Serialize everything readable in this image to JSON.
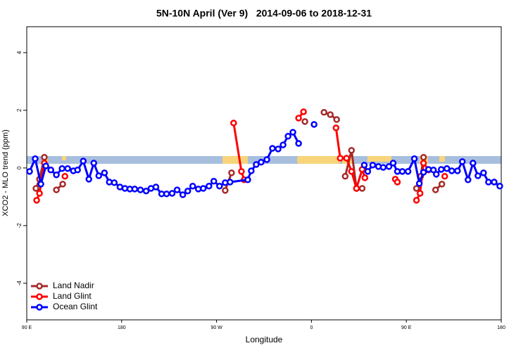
{
  "chart_data": {
    "type": "line",
    "title": "5N-10N April (Ver 9)   2014-09-06 to 2018-12-31",
    "x_label": "Longitude",
    "y_label": "XCO2 - MLO trend (ppm)",
    "xlim": [
      90,
      540
    ],
    "xticks": [
      {
        "value": 90,
        "label": "90 E"
      },
      {
        "value": 180,
        "label": "180"
      },
      {
        "value": 270,
        "label": "90 W"
      },
      {
        "value": 360,
        "label": "0"
      },
      {
        "value": 450,
        "label": "90 E"
      },
      {
        "value": 540,
        "label": "180"
      }
    ],
    "ylim": [
      -5.27,
      4.9
    ],
    "yticks": [
      -4,
      -2,
      0,
      2,
      4
    ],
    "legend": "bottom-left",
    "series": [
      {
        "name": "Land Nadir",
        "color": "#a52a2a",
        "x": [
          98.7,
          102.1,
          106.7,
          null,
          118.1,
          124.1,
          null,
          278.2,
          284.2,
          null,
          353.8,
          null,
          371.9,
          377.9,
          383.9,
          null,
          392.0,
          398.0,
          402.7,
          408.1,
          null,
          459.6,
          463.6,
          466.3,
          null,
          477.7,
          483.7
        ],
        "values": [
          -0.71,
          -0.39,
          0.37,
          null,
          -0.76,
          -0.56,
          null,
          -0.78,
          -0.17,
          null,
          1.61,
          null,
          1.93,
          1.85,
          1.68,
          null,
          -0.29,
          0.61,
          -0.71,
          -0.71,
          null,
          -0.71,
          -0.29,
          0.37,
          null,
          -0.76,
          -0.56
        ]
      },
      {
        "name": "Land Glint",
        "color": "#ff0000",
        "x": [
          99.4,
          102.1,
          106.7,
          112.8,
          null,
          126.2,
          null,
          286.2,
          293.6,
          296.2,
          null,
          347.8,
          352.5,
          null,
          383.3,
          387.3,
          393.3,
          398.0,
          402.7,
          408.1,
          410.7,
          null,
          439.5,
          441.5,
          null,
          459.6,
          463.0,
          466.3,
          471.0,
          null,
          486.4
        ],
        "values": [
          -1.12,
          -0.88,
          0.17,
          -0.07,
          null,
          -0.29,
          null,
          1.56,
          -0.12,
          -0.41,
          null,
          1.73,
          1.95,
          null,
          1.39,
          0.34,
          0.34,
          -0.12,
          -0.71,
          -0.05,
          -0.34,
          null,
          -0.39,
          -0.49,
          null,
          -1.12,
          -0.88,
          0.17,
          -0.07,
          null,
          -0.29
        ]
      },
      {
        "name": "Ocean Glint",
        "color": "#0000ff",
        "x": [
          92.7,
          98.0,
          103.4,
          108.1,
          112.8,
          118.1,
          123.5,
          128.8,
          134.2,
          138.2,
          143.6,
          148.9,
          153.6,
          158.3,
          163.7,
          168.3,
          173.0,
          178.4,
          183.1,
          187.8,
          192.4,
          197.8,
          203.2,
          207.8,
          212.5,
          217.9,
          222.6,
          227.9,
          232.6,
          238.0,
          242.7,
          247.4,
          252.7,
          257.4,
          262.8,
          267.4,
          272.8,
          278.2,
          282.8,
          299.6,
          302.9,
          307.6,
          312.3,
          317.7,
          323.0,
          328.4,
          333.1,
          337.8,
          342.4,
          347.8,
          null,
          362.5,
          null,
          410.1,
          413.4,
          418.1,
          423.5,
          428.1,
          433.5,
          437.5,
          441.5,
          446.2,
          451.6,
          457.6,
          462.3,
          466.3,
          471.0,
          475.7,
          478.4,
          483.1,
          488.4,
          493.1,
          498.5,
          503.1,
          508.5,
          513.2,
          517.9,
          523.2,
          527.9,
          533.3,
          538.6
        ],
        "values": [
          -0.12,
          0.32,
          -0.56,
          0.07,
          -0.07,
          -0.24,
          -0.02,
          -0.02,
          -0.1,
          -0.07,
          0.24,
          -0.39,
          0.17,
          -0.27,
          -0.17,
          -0.49,
          -0.51,
          -0.66,
          -0.71,
          -0.73,
          -0.73,
          -0.76,
          -0.8,
          -0.71,
          -0.66,
          -0.9,
          -0.9,
          -0.88,
          -0.76,
          -0.93,
          -0.8,
          -0.63,
          -0.73,
          -0.71,
          -0.63,
          -0.46,
          -0.63,
          -0.51,
          -0.49,
          -0.41,
          -0.1,
          0.12,
          0.2,
          0.29,
          0.68,
          0.66,
          0.8,
          1.1,
          1.24,
          0.85,
          null,
          1.51,
          null,
          0.1,
          -0.12,
          0.1,
          0.05,
          0.02,
          0.05,
          0.17,
          -0.12,
          -0.12,
          -0.12,
          0.32,
          -0.54,
          -0.15,
          -0.05,
          -0.07,
          -0.22,
          -0.05,
          -0.02,
          -0.1,
          -0.1,
          0.22,
          -0.41,
          0.17,
          -0.27,
          -0.17,
          -0.49,
          -0.49,
          -0.63
        ]
      }
    ]
  }
}
